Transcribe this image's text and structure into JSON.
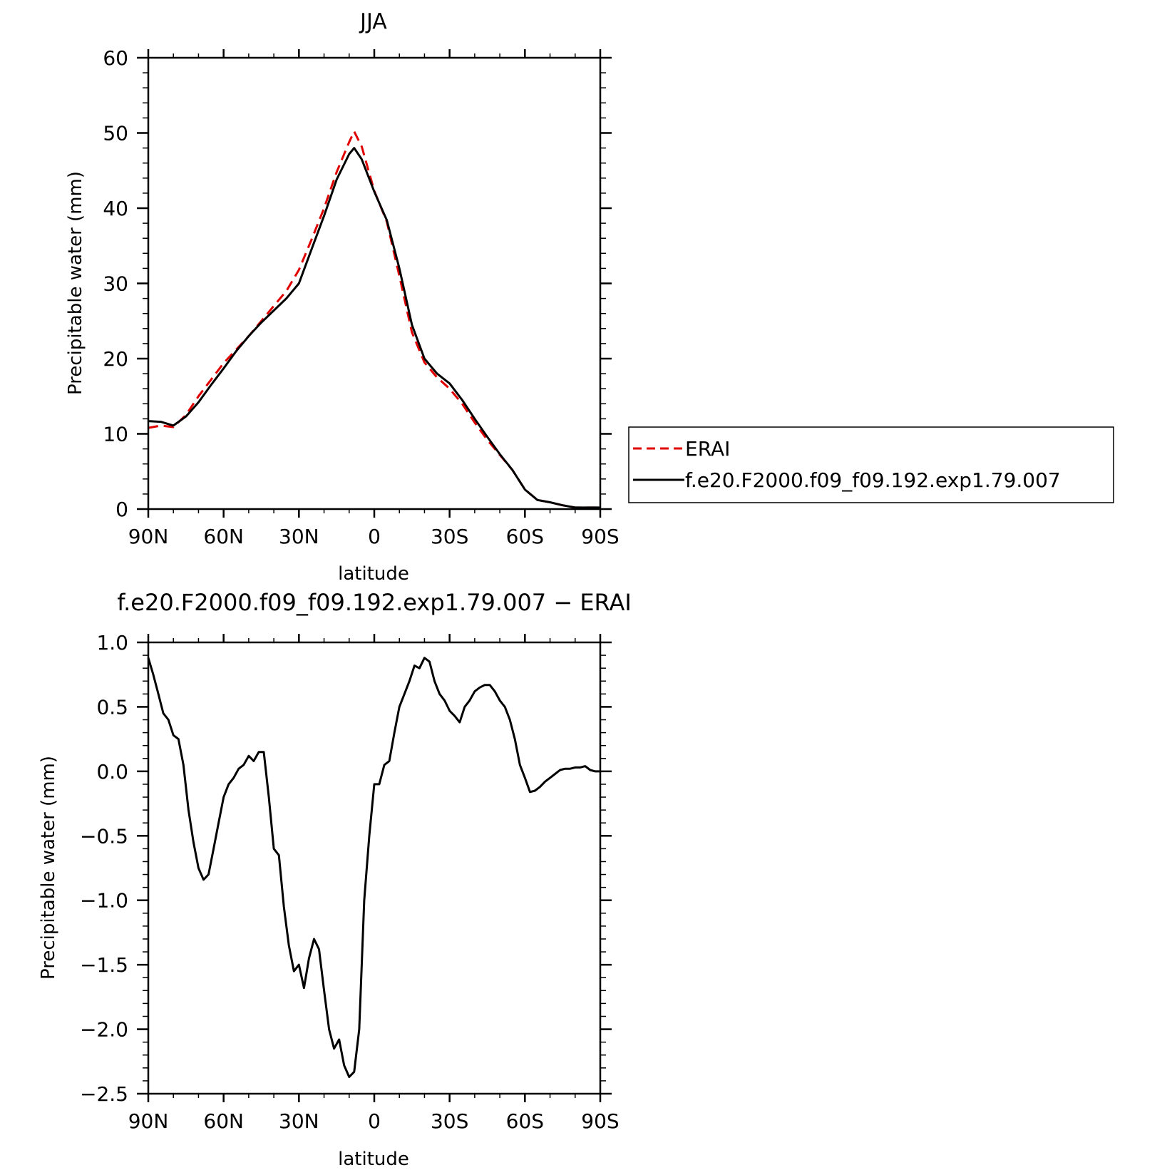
{
  "chart_data": [
    {
      "type": "line",
      "title": "JJA",
      "xlabel": "latitude",
      "ylabel": "Precipitable water (mm)",
      "xlim": [
        90,
        -90
      ],
      "ylim": [
        0,
        60
      ],
      "xticks": [
        90,
        60,
        30,
        0,
        -30,
        -60,
        -90
      ],
      "xtick_labels": [
        "90N",
        "60N",
        "30N",
        "0",
        "30S",
        "60S",
        "90S"
      ],
      "yticks": [
        0,
        10,
        20,
        30,
        40,
        50,
        60
      ],
      "ytick_labels": [
        "0",
        "10",
        "20",
        "30",
        "40",
        "50",
        "60"
      ],
      "legend": "right",
      "series": [
        {
          "name": "ERAI",
          "color": "#e00000",
          "dash": "dashed",
          "x": [
            90,
            85,
            80,
            75,
            70,
            65,
            60,
            55,
            50,
            45,
            40,
            35,
            30,
            25,
            20,
            15,
            10,
            8,
            5,
            0,
            -5,
            -10,
            -15,
            -20,
            -25,
            -30,
            -35,
            -40,
            -45,
            -50,
            -55,
            -60,
            -65,
            -70,
            -75,
            -80,
            -85,
            -90
          ],
          "y": [
            10.8,
            11.1,
            10.9,
            12.5,
            15.0,
            17.2,
            19.4,
            21.2,
            23.0,
            25.0,
            27.0,
            29.0,
            31.8,
            35.8,
            40.0,
            44.8,
            48.8,
            50.2,
            48.2,
            42.3,
            38.2,
            31.0,
            23.5,
            19.5,
            17.5,
            16.0,
            14.0,
            11.5,
            9.2,
            7.2,
            5.2,
            2.6,
            1.2,
            0.9,
            0.5,
            0.2,
            0.2,
            0.2
          ]
        },
        {
          "name": "f.e20.F2000.f09_f09.192.exp1.79.007",
          "color": "#000000",
          "dash": "solid",
          "x": [
            90,
            85,
            80,
            75,
            70,
            65,
            60,
            55,
            50,
            45,
            40,
            35,
            30,
            25,
            20,
            15,
            10,
            8,
            5,
            0,
            -5,
            -10,
            -15,
            -20,
            -25,
            -30,
            -35,
            -40,
            -45,
            -50,
            -55,
            -60,
            -65,
            -70,
            -75,
            -80,
            -85,
            -90
          ],
          "y": [
            11.7,
            11.6,
            11.1,
            12.3,
            14.2,
            16.5,
            18.7,
            21.0,
            23.0,
            24.8,
            26.4,
            28.0,
            30.0,
            34.5,
            39.0,
            43.8,
            47.2,
            48.0,
            46.5,
            42.2,
            38.4,
            32.0,
            24.5,
            20.0,
            18.0,
            16.7,
            14.5,
            12.0,
            9.6,
            7.3,
            5.2,
            2.6,
            1.2,
            0.9,
            0.5,
            0.2,
            0.2,
            0.2
          ]
        }
      ]
    },
    {
      "type": "line",
      "title": "f.e20.F2000.f09_f09.192.exp1.79.007 − ERAI",
      "xlabel": "latitude",
      "ylabel": "Precipitable water (mm)",
      "xlim": [
        90,
        -90
      ],
      "ylim": [
        -2.5,
        1.0
      ],
      "xticks": [
        90,
        60,
        30,
        0,
        -30,
        -60,
        -90
      ],
      "xtick_labels": [
        "90N",
        "60N",
        "30N",
        "0",
        "30S",
        "60S",
        "90S"
      ],
      "yticks": [
        1.0,
        0.5,
        0.0,
        -0.5,
        -1.0,
        -1.5,
        -2.0,
        -2.5
      ],
      "ytick_labels": [
        "1.0",
        "0.5",
        "0.0",
        "−0.5",
        "−1.0",
        "−1.5",
        "−2.0",
        "−2.5"
      ],
      "series": [
        {
          "color": "#000000",
          "x": [
            90,
            88,
            86,
            84,
            82,
            80,
            78,
            76,
            74,
            72,
            70,
            68,
            66,
            64,
            62,
            60,
            58,
            56,
            54,
            52,
            50,
            48,
            46,
            44,
            42,
            40,
            38,
            36,
            34,
            32,
            30,
            28,
            26,
            24,
            22,
            20,
            18,
            16,
            14,
            12,
            10,
            8,
            6,
            4,
            2,
            0,
            -2,
            -4,
            -6,
            -8,
            -10,
            -12,
            -14,
            -16,
            -18,
            -20,
            -22,
            -24,
            -26,
            -28,
            -30,
            -32,
            -34,
            -36,
            -38,
            -40,
            -42,
            -44,
            -46,
            -48,
            -50,
            -52,
            -54,
            -56,
            -58,
            -60,
            -62,
            -64,
            -66,
            -68,
            -70,
            -72,
            -74,
            -76,
            -78,
            -80,
            -82,
            -84,
            -86,
            -88,
            -90
          ],
          "y": [
            0.88,
            0.75,
            0.6,
            0.45,
            0.4,
            0.28,
            0.25,
            0.05,
            -0.3,
            -0.55,
            -0.75,
            -0.84,
            -0.8,
            -0.6,
            -0.4,
            -0.2,
            -0.1,
            -0.05,
            0.02,
            0.05,
            0.12,
            0.08,
            0.15,
            0.15,
            -0.2,
            -0.6,
            -0.65,
            -1.05,
            -1.35,
            -1.55,
            -1.5,
            -1.68,
            -1.45,
            -1.3,
            -1.38,
            -1.7,
            -2.0,
            -2.15,
            -2.08,
            -2.28,
            -2.37,
            -2.33,
            -2.0,
            -1.0,
            -0.5,
            -0.1,
            -0.1,
            0.05,
            0.08,
            0.3,
            0.5,
            0.6,
            0.7,
            0.82,
            0.8,
            0.88,
            0.85,
            0.7,
            0.6,
            0.55,
            0.47,
            0.43,
            0.38,
            0.5,
            0.55,
            0.62,
            0.65,
            0.67,
            0.67,
            0.62,
            0.55,
            0.5,
            0.4,
            0.25,
            0.05,
            -0.05,
            -0.16,
            -0.15,
            -0.12,
            -0.08,
            -0.05,
            -0.02,
            0.01,
            0.02,
            0.02,
            0.03,
            0.03,
            0.04,
            0.01,
            0.0,
            0.0
          ]
        }
      ]
    }
  ]
}
